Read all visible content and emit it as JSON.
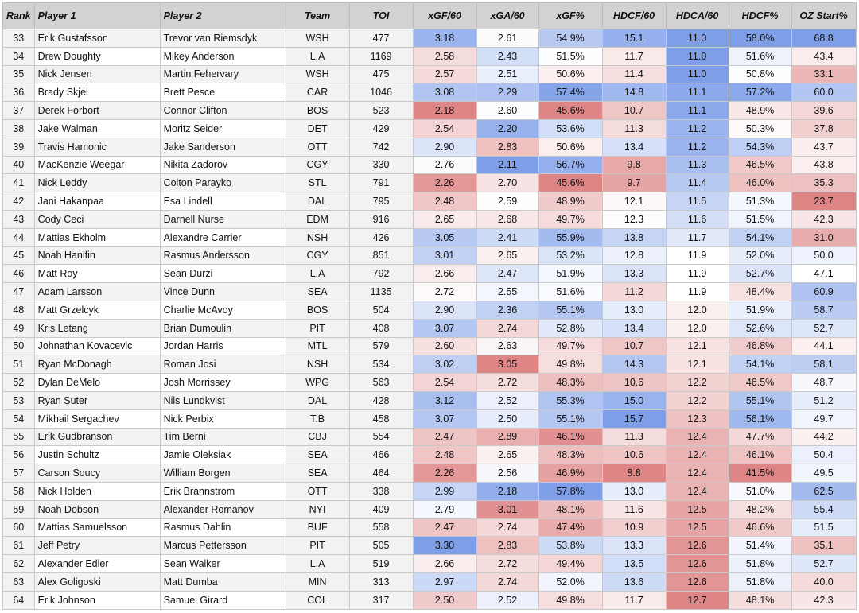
{
  "headers": [
    "Rank",
    "Player 1",
    "Player 2",
    "Team",
    "TOI",
    "xGF/60",
    "xGA/60",
    "xGF%",
    "HDCF/60",
    "HDCA/60",
    "HDCF%",
    "OZ Start%"
  ],
  "colors": {
    "high": "#7e9fe8",
    "mid": "#ffffff",
    "low": "#de8686"
  },
  "rows": [
    [
      "33",
      "Erik Gustafsson",
      "Trevor van Riemsdyk",
      "WSH",
      "477",
      "3.18",
      "2.61",
      "54.9%",
      "15.1",
      "11.0",
      "58.0%",
      "68.8"
    ],
    [
      "34",
      "Drew Doughty",
      "Mikey Anderson",
      "L.A",
      "1169",
      "2.58",
      "2.43",
      "51.5%",
      "11.7",
      "11.0",
      "51.6%",
      "43.4"
    ],
    [
      "35",
      "Nick Jensen",
      "Martin Fehervary",
      "WSH",
      "475",
      "2.57",
      "2.51",
      "50.6%",
      "11.4",
      "11.0",
      "50.8%",
      "33.1"
    ],
    [
      "36",
      "Brady Skjei",
      "Brett Pesce",
      "CAR",
      "1046",
      "3.08",
      "2.29",
      "57.4%",
      "14.8",
      "11.1",
      "57.2%",
      "60.0"
    ],
    [
      "37",
      "Derek Forbort",
      "Connor Clifton",
      "BOS",
      "523",
      "2.18",
      "2.60",
      "45.6%",
      "10.7",
      "11.1",
      "48.9%",
      "39.6"
    ],
    [
      "38",
      "Jake Walman",
      "Moritz Seider",
      "DET",
      "429",
      "2.54",
      "2.20",
      "53.6%",
      "11.3",
      "11.2",
      "50.3%",
      "37.8"
    ],
    [
      "39",
      "Travis Hamonic",
      "Jake Sanderson",
      "OTT",
      "742",
      "2.90",
      "2.83",
      "50.6%",
      "13.4",
      "11.2",
      "54.3%",
      "43.7"
    ],
    [
      "40",
      "MacKenzie Weegar",
      "Nikita Zadorov",
      "CGY",
      "330",
      "2.76",
      "2.11",
      "56.7%",
      "9.8",
      "11.3",
      "46.5%",
      "43.8"
    ],
    [
      "41",
      "Nick Leddy",
      "Colton Parayko",
      "STL",
      "791",
      "2.26",
      "2.70",
      "45.6%",
      "9.7",
      "11.4",
      "46.0%",
      "35.3"
    ],
    [
      "42",
      "Jani Hakanpaa",
      "Esa Lindell",
      "DAL",
      "795",
      "2.48",
      "2.59",
      "48.9%",
      "12.1",
      "11.5",
      "51.3%",
      "23.7"
    ],
    [
      "43",
      "Cody Ceci",
      "Darnell Nurse",
      "EDM",
      "916",
      "2.65",
      "2.68",
      "49.7%",
      "12.3",
      "11.6",
      "51.5%",
      "42.3"
    ],
    [
      "44",
      "Mattias Ekholm",
      "Alexandre Carrier",
      "NSH",
      "426",
      "3.05",
      "2.41",
      "55.9%",
      "13.8",
      "11.7",
      "54.1%",
      "31.0"
    ],
    [
      "45",
      "Noah Hanifin",
      "Rasmus Andersson",
      "CGY",
      "851",
      "3.01",
      "2.65",
      "53.2%",
      "12.8",
      "11.9",
      "52.0%",
      "50.0"
    ],
    [
      "46",
      "Matt Roy",
      "Sean Durzi",
      "L.A",
      "792",
      "2.66",
      "2.47",
      "51.9%",
      "13.3",
      "11.9",
      "52.7%",
      "47.1"
    ],
    [
      "47",
      "Adam Larsson",
      "Vince Dunn",
      "SEA",
      "1135",
      "2.72",
      "2.55",
      "51.6%",
      "11.2",
      "11.9",
      "48.4%",
      "60.9"
    ],
    [
      "48",
      "Matt Grzelcyk",
      "Charlie McAvoy",
      "BOS",
      "504",
      "2.90",
      "2.36",
      "55.1%",
      "13.0",
      "12.0",
      "51.9%",
      "58.7"
    ],
    [
      "49",
      "Kris Letang",
      "Brian Dumoulin",
      "PIT",
      "408",
      "3.07",
      "2.74",
      "52.8%",
      "13.4",
      "12.0",
      "52.6%",
      "52.7"
    ],
    [
      "50",
      "Johnathan Kovacevic",
      "Jordan Harris",
      "MTL",
      "579",
      "2.60",
      "2.63",
      "49.7%",
      "10.7",
      "12.1",
      "46.8%",
      "44.1"
    ],
    [
      "51",
      "Ryan McDonagh",
      "Roman Josi",
      "NSH",
      "534",
      "3.02",
      "3.05",
      "49.8%",
      "14.3",
      "12.1",
      "54.1%",
      "58.1"
    ],
    [
      "52",
      "Dylan DeMelo",
      "Josh Morrissey",
      "WPG",
      "563",
      "2.54",
      "2.72",
      "48.3%",
      "10.6",
      "12.2",
      "46.5%",
      "48.7"
    ],
    [
      "53",
      "Ryan Suter",
      "Nils Lundkvist",
      "DAL",
      "428",
      "3.12",
      "2.52",
      "55.3%",
      "15.0",
      "12.2",
      "55.1%",
      "51.2"
    ],
    [
      "54",
      "Mikhail Sergachev",
      "Nick Perbix",
      "T.B",
      "458",
      "3.07",
      "2.50",
      "55.1%",
      "15.7",
      "12.3",
      "56.1%",
      "49.7"
    ],
    [
      "55",
      "Erik Gudbranson",
      "Tim Berni",
      "CBJ",
      "554",
      "2.47",
      "2.89",
      "46.1%",
      "11.3",
      "12.4",
      "47.7%",
      "44.2"
    ],
    [
      "56",
      "Justin Schultz",
      "Jamie Oleksiak",
      "SEA",
      "466",
      "2.48",
      "2.65",
      "48.3%",
      "10.6",
      "12.4",
      "46.1%",
      "50.4"
    ],
    [
      "57",
      "Carson Soucy",
      "William Borgen",
      "SEA",
      "464",
      "2.26",
      "2.56",
      "46.9%",
      "8.8",
      "12.4",
      "41.5%",
      "49.5"
    ],
    [
      "58",
      "Nick Holden",
      "Erik Brannstrom",
      "OTT",
      "338",
      "2.99",
      "2.18",
      "57.8%",
      "13.0",
      "12.4",
      "51.0%",
      "62.5"
    ],
    [
      "59",
      "Noah Dobson",
      "Alexander Romanov",
      "NYI",
      "409",
      "2.79",
      "3.01",
      "48.1%",
      "11.6",
      "12.5",
      "48.2%",
      "55.4"
    ],
    [
      "60",
      "Mattias Samuelsson",
      "Rasmus Dahlin",
      "BUF",
      "558",
      "2.47",
      "2.74",
      "47.4%",
      "10.9",
      "12.5",
      "46.6%",
      "51.5"
    ],
    [
      "61",
      "Jeff Petry",
      "Marcus Pettersson",
      "PIT",
      "505",
      "3.30",
      "2.83",
      "53.8%",
      "13.3",
      "12.6",
      "51.4%",
      "35.1"
    ],
    [
      "62",
      "Alexander Edler",
      "Sean Walker",
      "L.A",
      "519",
      "2.66",
      "2.72",
      "49.4%",
      "13.5",
      "12.6",
      "51.8%",
      "52.7"
    ],
    [
      "63",
      "Alex Goligoski",
      "Matt Dumba",
      "MIN",
      "313",
      "2.97",
      "2.74",
      "52.0%",
      "13.6",
      "12.6",
      "51.8%",
      "40.0"
    ],
    [
      "64",
      "Erik Johnson",
      "Samuel Girard",
      "COL",
      "317",
      "2.50",
      "2.52",
      "49.8%",
      "11.7",
      "12.7",
      "48.1%",
      "42.3"
    ]
  ]
}
